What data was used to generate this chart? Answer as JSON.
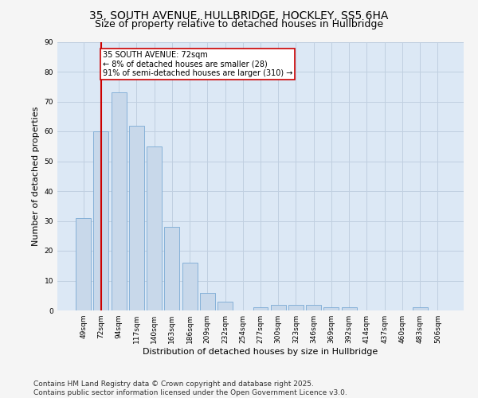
{
  "title1": "35, SOUTH AVENUE, HULLBRIDGE, HOCKLEY, SS5 6HA",
  "title2": "Size of property relative to detached houses in Hullbridge",
  "xlabel": "Distribution of detached houses by size in Hullbridge",
  "ylabel": "Number of detached properties",
  "categories": [
    "49sqm",
    "72sqm",
    "94sqm",
    "117sqm",
    "140sqm",
    "163sqm",
    "186sqm",
    "209sqm",
    "232sqm",
    "254sqm",
    "277sqm",
    "300sqm",
    "323sqm",
    "346sqm",
    "369sqm",
    "392sqm",
    "414sqm",
    "437sqm",
    "460sqm",
    "483sqm",
    "506sqm"
  ],
  "values": [
    31,
    60,
    73,
    62,
    55,
    28,
    16,
    6,
    3,
    0,
    1,
    2,
    2,
    2,
    1,
    1,
    0,
    0,
    0,
    1,
    0
  ],
  "bar_color": "#c8d8ea",
  "bar_edgecolor": "#7aaad4",
  "vline_x_index": 1,
  "vline_color": "#cc0000",
  "annotation_text": "35 SOUTH AVENUE: 72sqm\n← 8% of detached houses are smaller (28)\n91% of semi-detached houses are larger (310) →",
  "annotation_box_edgecolor": "#cc0000",
  "annotation_box_facecolor": "#ffffff",
  "ylim": [
    0,
    90
  ],
  "yticks": [
    0,
    10,
    20,
    30,
    40,
    50,
    60,
    70,
    80,
    90
  ],
  "grid_color": "#c0cfe0",
  "bg_color": "#dce8f5",
  "fig_bg_color": "#f5f5f5",
  "footer_line1": "Contains HM Land Registry data © Crown copyright and database right 2025.",
  "footer_line2": "Contains public sector information licensed under the Open Government Licence v3.0.",
  "title1_fontsize": 10,
  "title2_fontsize": 9,
  "xlabel_fontsize": 8,
  "ylabel_fontsize": 8,
  "tick_fontsize": 6.5,
  "annotation_fontsize": 7,
  "footer_fontsize": 6.5
}
